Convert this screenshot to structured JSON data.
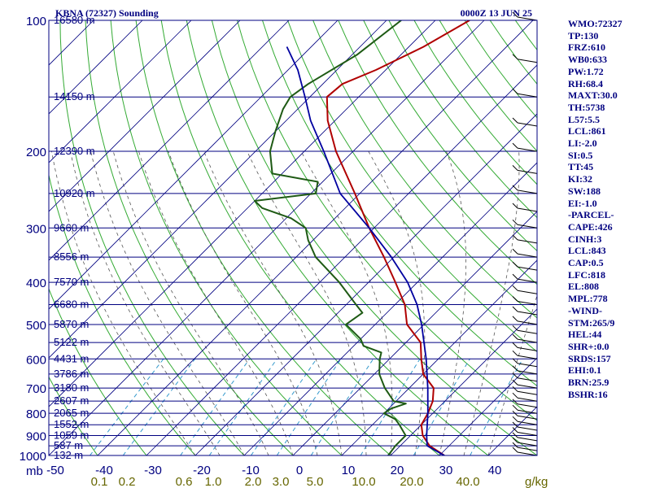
{
  "title_left": "KBNA (72327) Sounding",
  "title_right": "0000Z 13 JUN 25",
  "units": {
    "pressure": "mb",
    "mixing_ratio": "g/kg"
  },
  "colors": {
    "temperature": "#b00000",
    "dewpoint": "#1e5a14",
    "parcel": "#0000a0",
    "isobar": "#000080",
    "isotherm": "#000080",
    "dry_adiabat": "#33aa33",
    "moist_adiabat": "#555555",
    "mixing_ratio": "#3399cc",
    "text": "#000080",
    "xlabels": "#666600"
  },
  "pressure_labels": [
    "100",
    "200",
    "300",
    "400",
    "500",
    "600",
    "700",
    "800",
    "900",
    "1000"
  ],
  "height_labels": [
    {
      "p": 100,
      "label": "16580 m"
    },
    {
      "p": 150,
      "label": "14150 m"
    },
    {
      "p": 200,
      "label": "12390 m"
    },
    {
      "p": 250,
      "label": "10920 m"
    },
    {
      "p": 300,
      "label": "9660 m"
    },
    {
      "p": 350,
      "label": "8556 m"
    },
    {
      "p": 400,
      "label": "7570 m"
    },
    {
      "p": 450,
      "label": "6680 m"
    },
    {
      "p": 500,
      "label": "5870 m"
    },
    {
      "p": 550,
      "label": "5122 m"
    },
    {
      "p": 600,
      "label": "4431 m"
    },
    {
      "p": 650,
      "label": "3786 m"
    },
    {
      "p": 700,
      "label": "3180 m"
    },
    {
      "p": 750,
      "label": "2607 m"
    },
    {
      "p": 800,
      "label": "2065 m"
    },
    {
      "p": 850,
      "label": "1552 m"
    },
    {
      "p": 900,
      "label": "1059 m"
    },
    {
      "p": 950,
      "label": "587 m"
    },
    {
      "p": 1000,
      "label": "132 m"
    }
  ],
  "temperature_labels": [
    "-50",
    "-40",
    "-30",
    "-20",
    "-10",
    "0",
    "10",
    "20",
    "30",
    "40"
  ],
  "mixing_ratio_labels": [
    "0.1",
    "0.2",
    "0.6",
    "1.0",
    "2.0",
    "3.0",
    "5.0",
    "10.0",
    "20.0",
    "40.0"
  ],
  "side_panel": [
    "WMO:72327",
    "TP:130",
    "FRZ:610",
    "WB0:633",
    "PW:1.72",
    "RH:68.4",
    "MAXT:30.0",
    "TH:5738",
    "L57:5.5",
    "LCL:861",
    "LI:-2.0",
    "SI:0.5",
    "TT:45",
    "KI:32",
    "SW:188",
    "EI:-1.0",
    "-PARCEL-",
    "CAPE:426",
    "CINH:3",
    "LCL:843",
    "CAP:0.5",
    "LFC:818",
    "EL:808",
    "MPL:778",
    "-WIND-",
    "STM:265/9",
    "HEL:44",
    "SHR+:0.0",
    "SRDS:157",
    "EHI:0.1",
    "BRN:25.9",
    "BSHR:16"
  ],
  "chart_data": {
    "type": "line",
    "diagram": "skew-T log-P",
    "y_axis": "pressure (mb), log scale",
    "x_axis": "temperature (C), skewed 45 degrees",
    "ylim": [
      1000,
      100
    ],
    "xlim": [
      -50,
      50
    ],
    "series": [
      {
        "role": "temperature",
        "points": [
          [
            1000,
            31
          ],
          [
            950,
            26
          ],
          [
            900,
            22.5
          ],
          [
            850,
            20
          ],
          [
            800,
            19
          ],
          [
            750,
            17.5
          ],
          [
            700,
            15
          ],
          [
            650,
            10
          ],
          [
            600,
            6.5
          ],
          [
            550,
            3
          ],
          [
            500,
            -3.5
          ],
          [
            450,
            -8
          ],
          [
            400,
            -14.5
          ],
          [
            350,
            -22
          ],
          [
            300,
            -31
          ],
          [
            250,
            -41
          ],
          [
            200,
            -53.5
          ],
          [
            170,
            -61.5
          ],
          [
            150,
            -66.5
          ],
          [
            140,
            -66
          ],
          [
            130,
            -62
          ],
          [
            115,
            -57
          ],
          [
            100,
            -53
          ]
        ]
      },
      {
        "role": "dewpoint",
        "points": [
          [
            1000,
            19.5
          ],
          [
            950,
            19
          ],
          [
            900,
            19
          ],
          [
            850,
            15.5
          ],
          [
            825,
            13.5
          ],
          [
            800,
            10
          ],
          [
            780,
            10.5
          ],
          [
            760,
            12.5
          ],
          [
            750,
            9.5
          ],
          [
            700,
            5
          ],
          [
            650,
            1
          ],
          [
            600,
            -2
          ],
          [
            580,
            -3
          ],
          [
            560,
            -8
          ],
          [
            540,
            -10
          ],
          [
            500,
            -16
          ],
          [
            470,
            -15
          ],
          [
            450,
            -18
          ],
          [
            400,
            -26
          ],
          [
            350,
            -36
          ],
          [
            320,
            -41
          ],
          [
            300,
            -44
          ],
          [
            285,
            -49
          ],
          [
            270,
            -57
          ],
          [
            260,
            -60
          ],
          [
            250,
            -49
          ],
          [
            235,
            -51
          ],
          [
            225,
            -62
          ],
          [
            200,
            -67
          ],
          [
            180,
            -70
          ],
          [
            160,
            -73
          ],
          [
            150,
            -74
          ],
          [
            140,
            -73
          ],
          [
            120,
            -69
          ],
          [
            100,
            -67
          ]
        ]
      },
      {
        "role": "parcel",
        "points": [
          [
            1000,
            31
          ],
          [
            950,
            25.5
          ],
          [
            900,
            23.3
          ],
          [
            850,
            21.2
          ],
          [
            800,
            19
          ],
          [
            700,
            13.8
          ],
          [
            600,
            7.5
          ],
          [
            500,
            -0.5
          ],
          [
            450,
            -5.5
          ],
          [
            400,
            -12
          ],
          [
            350,
            -20.5
          ],
          [
            300,
            -31
          ],
          [
            250,
            -44
          ],
          [
            200,
            -56
          ],
          [
            170,
            -65
          ],
          [
            150,
            -71
          ],
          [
            130,
            -78
          ],
          [
            115,
            -85
          ]
        ]
      }
    ]
  }
}
